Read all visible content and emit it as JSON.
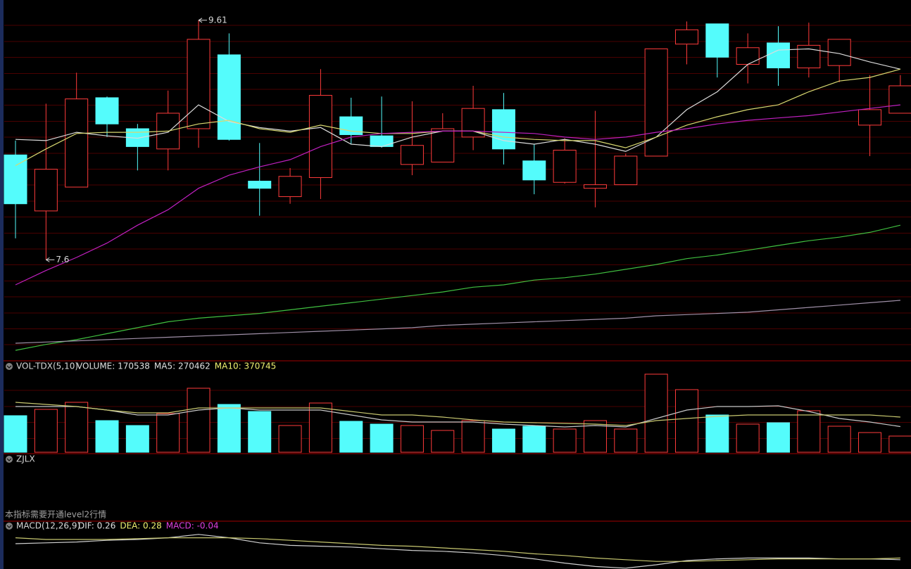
{
  "chart_data": [
    {
      "type": "candlestick",
      "open": [
        8.48,
        8.01,
        8.21,
        8.96,
        8.7,
        8.53,
        8.7,
        9.32,
        8.26,
        8.13,
        8.29,
        8.8,
        8.64,
        8.4,
        8.42,
        8.63,
        8.86,
        8.43,
        8.25,
        8.2,
        8.23,
        8.47,
        9.41,
        9.58,
        9.24,
        9.42,
        9.21,
        9.23,
        8.73,
        8.83
      ],
      "high": [
        8.6,
        8.91,
        9.17,
        8.97,
        8.74,
        9.02,
        9.61,
        9.5,
        8.58,
        8.37,
        9.2,
        8.96,
        8.97,
        8.93,
        8.83,
        9.06,
        9.0,
        8.57,
        8.62,
        8.85,
        8.49,
        9.37,
        9.6,
        9.58,
        9.5,
        9.56,
        9.59,
        9.45,
        9.15,
        9.15
      ],
      "low": [
        7.78,
        7.6,
        8.21,
        8.63,
        8.35,
        8.35,
        8.54,
        8.6,
        7.97,
        8.07,
        8.11,
        8.57,
        8.54,
        8.31,
        8.42,
        8.52,
        8.4,
        8.15,
        8.24,
        8.04,
        8.23,
        8.47,
        9.24,
        9.13,
        9.08,
        9.06,
        9.13,
        9.09,
        8.47,
        8.83
      ],
      "close": [
        8.07,
        8.36,
        8.95,
        8.74,
        8.55,
        8.83,
        9.45,
        8.61,
        8.2,
        8.3,
        8.98,
        8.65,
        8.55,
        8.56,
        8.7,
        8.87,
        8.53,
        8.27,
        8.52,
        8.23,
        8.47,
        9.37,
        9.53,
        9.3,
        9.38,
        9.21,
        9.4,
        9.45,
        8.86,
        9.06
      ],
      "up_color": "#ff3b3b",
      "down_color": "#54fcfc",
      "ylim": [
        6.77,
        9.78
      ],
      "series": [
        {
          "color": "#dcdcdc",
          "values": [
            8.61,
            8.6,
            8.67,
            8.64,
            8.62,
            8.67,
            8.9,
            8.76,
            8.71,
            8.68,
            8.71,
            8.57,
            8.55,
            8.63,
            8.68,
            8.68,
            8.6,
            8.57,
            8.61,
            8.57,
            8.51,
            8.63,
            8.86,
            9.01,
            9.24,
            9.36,
            9.37,
            9.33,
            9.26,
            9.2
          ]
        },
        {
          "color": "#d8d870",
          "values": [
            8.39,
            8.53,
            8.66,
            8.67,
            8.67,
            8.68,
            8.74,
            8.77,
            8.7,
            8.67,
            8.73,
            8.68,
            8.66,
            8.66,
            8.68,
            8.68,
            8.63,
            8.61,
            8.6,
            8.6,
            8.54,
            8.63,
            8.73,
            8.8,
            8.86,
            8.9,
            9.01,
            9.1,
            9.13,
            9.2
          ]
        },
        {
          "color": "#c020c0",
          "values": [
            7.39,
            7.51,
            7.62,
            7.74,
            7.89,
            8.02,
            8.2,
            8.31,
            8.38,
            8.44,
            8.55,
            8.63,
            8.66,
            8.67,
            8.68,
            8.68,
            8.67,
            8.66,
            8.63,
            8.61,
            8.63,
            8.67,
            8.7,
            8.74,
            8.77,
            8.79,
            8.81,
            8.84,
            8.87,
            8.9
          ]
        },
        {
          "color": "#40c040",
          "values": [
            6.84,
            6.89,
            6.93,
            6.98,
            7.03,
            7.08,
            7.11,
            7.13,
            7.15,
            7.18,
            7.21,
            7.24,
            7.27,
            7.3,
            7.33,
            7.37,
            7.39,
            7.43,
            7.45,
            7.48,
            7.52,
            7.56,
            7.61,
            7.64,
            7.68,
            7.72,
            7.76,
            7.79,
            7.83,
            7.89
          ]
        },
        {
          "color": "#a090a8",
          "values": [
            6.9,
            6.91,
            6.92,
            6.93,
            6.94,
            6.95,
            6.96,
            6.97,
            6.98,
            6.99,
            7.0,
            7.01,
            7.02,
            7.03,
            7.05,
            7.06,
            7.07,
            7.08,
            7.09,
            7.1,
            7.11,
            7.13,
            7.14,
            7.15,
            7.16,
            7.18,
            7.2,
            7.22,
            7.24,
            7.26
          ]
        }
      ]
    },
    {
      "type": "bar",
      "title": "VOL-TDX(5,10)",
      "header": [
        "VOLUME: 170538",
        "MA5: 270462",
        "MA10: 370745"
      ],
      "header_colors": [
        "#e0e0e0",
        "#e0e0e0",
        "#f0f070"
      ],
      "values": [
        385580,
        452300,
        526500,
        333700,
        281800,
        407800,
        674800,
        504200,
        430100,
        281800,
        519000,
        326300,
        296600,
        281800,
        229900,
        333700,
        244700,
        274400,
        244700,
        333700,
        244700,
        823100,
        660000,
        393000,
        296600,
        311400,
        437500,
        274400,
        207600,
        170538
      ],
      "ylim": [
        0,
        852700
      ],
      "series": [
        {
          "color": "#c8c8c8",
          "values": [
            482000,
            482000,
            482000,
            444900,
            393000,
            393000,
            444900,
            467100,
            444900,
            444900,
            444900,
            393000,
            341100,
            318800,
            318800,
            318800,
            296600,
            281800,
            266900,
            281800,
            266900,
            355900,
            444900,
            482000,
            482000,
            489400,
            430100,
            355900,
            318800,
            270462
          ]
        },
        {
          "color": "#c8c870",
          "values": [
            526500,
            504200,
            482000,
            444900,
            415200,
            415200,
            467100,
            467100,
            467100,
            467100,
            467100,
            430100,
            393000,
            393000,
            370700,
            341100,
            318800,
            311400,
            304000,
            296600,
            281800,
            333700,
            355900,
            378200,
            393000,
            393000,
            393000,
            393000,
            393000,
            370745
          ]
        }
      ]
    },
    {
      "type": "line",
      "title": "MACD(12,26,9)",
      "header": [
        "DIF: 0.26",
        "DEA: 0.28",
        "MACD: -0.04"
      ],
      "header_colors": [
        "#e0e0e0",
        "#f0f070",
        "#e040e0"
      ],
      "ylim": [
        0.15,
        0.6
      ],
      "series": [
        {
          "color": "#d0d0d0",
          "values": [
            0.45,
            0.46,
            0.47,
            0.49,
            0.5,
            0.52,
            0.56,
            0.52,
            0.46,
            0.43,
            0.42,
            0.41,
            0.39,
            0.37,
            0.36,
            0.34,
            0.31,
            0.27,
            0.22,
            0.18,
            0.16,
            0.2,
            0.25,
            0.27,
            0.28,
            0.28,
            0.28,
            0.27,
            0.27,
            0.26
          ]
        },
        {
          "color": "#c8c870",
          "values": [
            0.52,
            0.5,
            0.5,
            0.5,
            0.51,
            0.52,
            0.52,
            0.52,
            0.51,
            0.49,
            0.47,
            0.45,
            0.43,
            0.42,
            0.4,
            0.38,
            0.36,
            0.33,
            0.31,
            0.28,
            0.26,
            0.24,
            0.24,
            0.25,
            0.26,
            0.27,
            0.27,
            0.27,
            0.27,
            0.28
          ]
        }
      ]
    }
  ],
  "zjlx": {
    "title": "ZJLX",
    "message": "本指标需要开通level2行情"
  }
}
